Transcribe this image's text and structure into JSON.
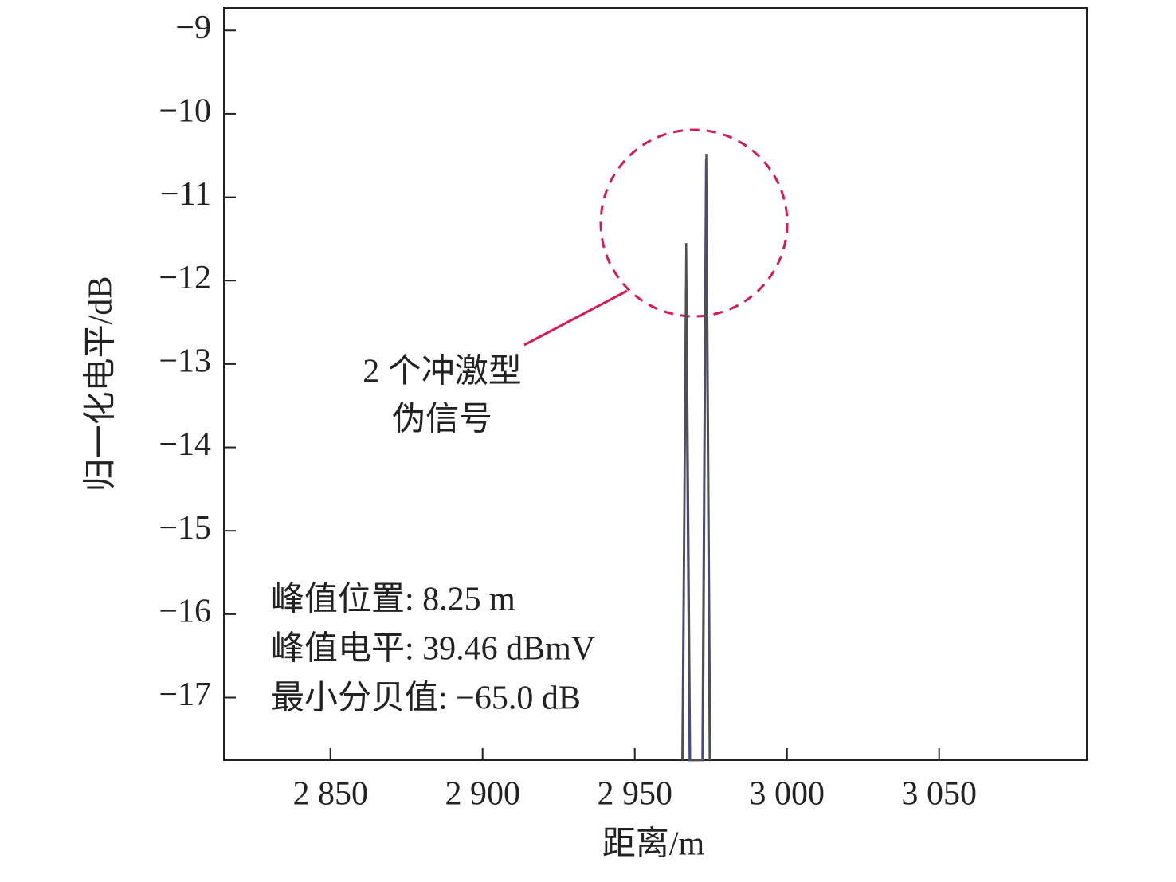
{
  "chart_data": {
    "type": "line",
    "xlabel": "距离/m",
    "ylabel": "归一化电平/dB",
    "xlim": [
      2815,
      3098.5
    ],
    "ylim": [
      -17.75,
      -8.73
    ],
    "xticks": [
      {
        "value": 2850,
        "label": "2 850"
      },
      {
        "value": 2900,
        "label": "2 900"
      },
      {
        "value": 2950,
        "label": "2 950"
      },
      {
        "value": 3000,
        "label": "3 000"
      },
      {
        "value": 3050,
        "label": "3 050"
      }
    ],
    "yticks": [
      {
        "value": -9,
        "label": "−9"
      },
      {
        "value": -10,
        "label": "−10"
      },
      {
        "value": -11,
        "label": "−11"
      },
      {
        "value": -12,
        "label": "−12"
      },
      {
        "value": -13,
        "label": "−13"
      },
      {
        "value": -14,
        "label": "−14"
      },
      {
        "value": -15,
        "label": "−15"
      },
      {
        "value": -16,
        "label": "−16"
      },
      {
        "value": -17,
        "label": "−17"
      }
    ],
    "series": [
      {
        "color": "#4040b0",
        "x": [
          2965.6,
          2966.8,
          2968.0,
          2972.2,
          2973.4,
          2974.6
        ],
        "values": [
          -17.75,
          -12.1,
          -17.75,
          -17.75,
          -10.55,
          -17.75
        ]
      },
      {
        "color": "#505050",
        "x": [
          2965.8,
          2966.9,
          2968.2,
          2972.4,
          2973.5,
          2974.8
        ],
        "values": [
          -17.75,
          -11.55,
          -17.75,
          -17.75,
          -10.48,
          -17.75
        ]
      }
    ],
    "annotations": [
      "2 个冲激型",
      "伪信号"
    ],
    "info": [
      "峰值位置: 8.25 m",
      "峰值电平: 39.46 dBmV",
      "最小分贝值: −65.0 dB"
    ]
  }
}
